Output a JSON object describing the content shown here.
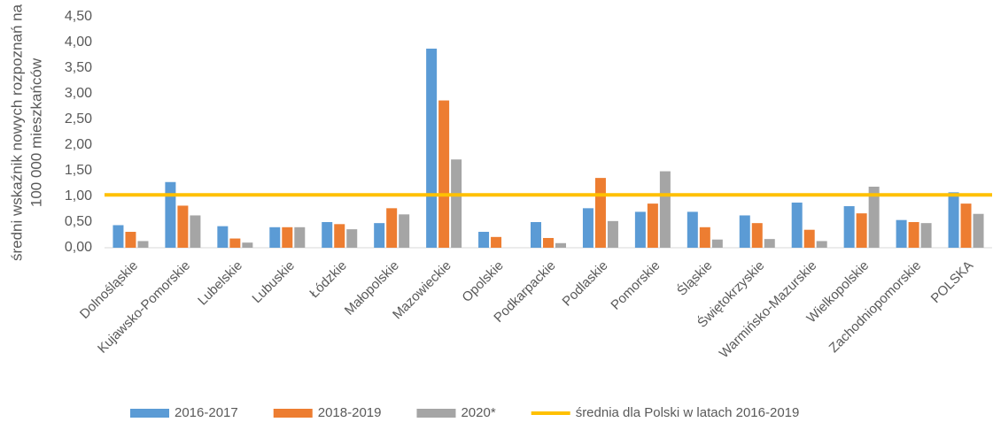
{
  "chart_data": {
    "type": "bar",
    "ylabel": [
      "średni wskaźnik nowych rozpoznań na",
      "100 000 mieszkańców"
    ],
    "categories": [
      "Dolnośląskie",
      "Kujawsko-Pomorskie",
      "Lubelskie",
      "Lubuskie",
      "Łódzkie",
      "Małopolskie",
      "Mazowieckie",
      "Opolskie",
      "Podkarpackie",
      "Podlaskie",
      "Pomorskie",
      "Śląskie",
      "Świętokrzyskie",
      "Warmińsko-Mazurskie",
      "Wielkopolskie",
      "Zachodniopomorskie",
      "POLSKA"
    ],
    "series": [
      {
        "name": "2016-2017",
        "color": "#5b9bd5",
        "values": [
          0.44,
          1.28,
          0.42,
          0.4,
          0.5,
          0.48,
          3.88,
          0.31,
          0.5,
          0.77,
          0.7,
          0.7,
          0.63,
          0.88,
          0.81,
          0.54,
          1.08
        ]
      },
      {
        "name": "2018-2019",
        "color": "#ed7d31",
        "values": [
          0.31,
          0.82,
          0.18,
          0.4,
          0.46,
          0.77,
          2.87,
          0.21,
          0.19,
          1.36,
          0.86,
          0.4,
          0.48,
          0.35,
          0.67,
          0.5,
          0.86
        ]
      },
      {
        "name": "2020*",
        "color": "#a5a5a5",
        "values": [
          0.13,
          0.63,
          0.1,
          0.4,
          0.36,
          0.65,
          1.72,
          0,
          0.09,
          0.52,
          1.49,
          0.16,
          0.17,
          0.13,
          1.19,
          0.48,
          0.66
        ]
      }
    ],
    "reference_line": {
      "name": "średnia dla Polski w latach 2016-2019",
      "value": 1.03,
      "color": "#ffc000"
    },
    "ylim": [
      0,
      4.5
    ],
    "yticks": [
      {
        "value": 0,
        "label": "0,00"
      },
      {
        "value": 0.5,
        "label": "0,50"
      },
      {
        "value": 1,
        "label": "1,00"
      },
      {
        "value": 1.5,
        "label": "1,50"
      },
      {
        "value": 2,
        "label": "2,00"
      },
      {
        "value": 2.5,
        "label": "2,50"
      },
      {
        "value": 3,
        "label": "3,00"
      },
      {
        "value": 3.5,
        "label": "3,50"
      },
      {
        "value": 4,
        "label": "4,00"
      },
      {
        "value": 4.5,
        "label": "4,50"
      }
    ],
    "grid": false,
    "legend": "bottom"
  }
}
